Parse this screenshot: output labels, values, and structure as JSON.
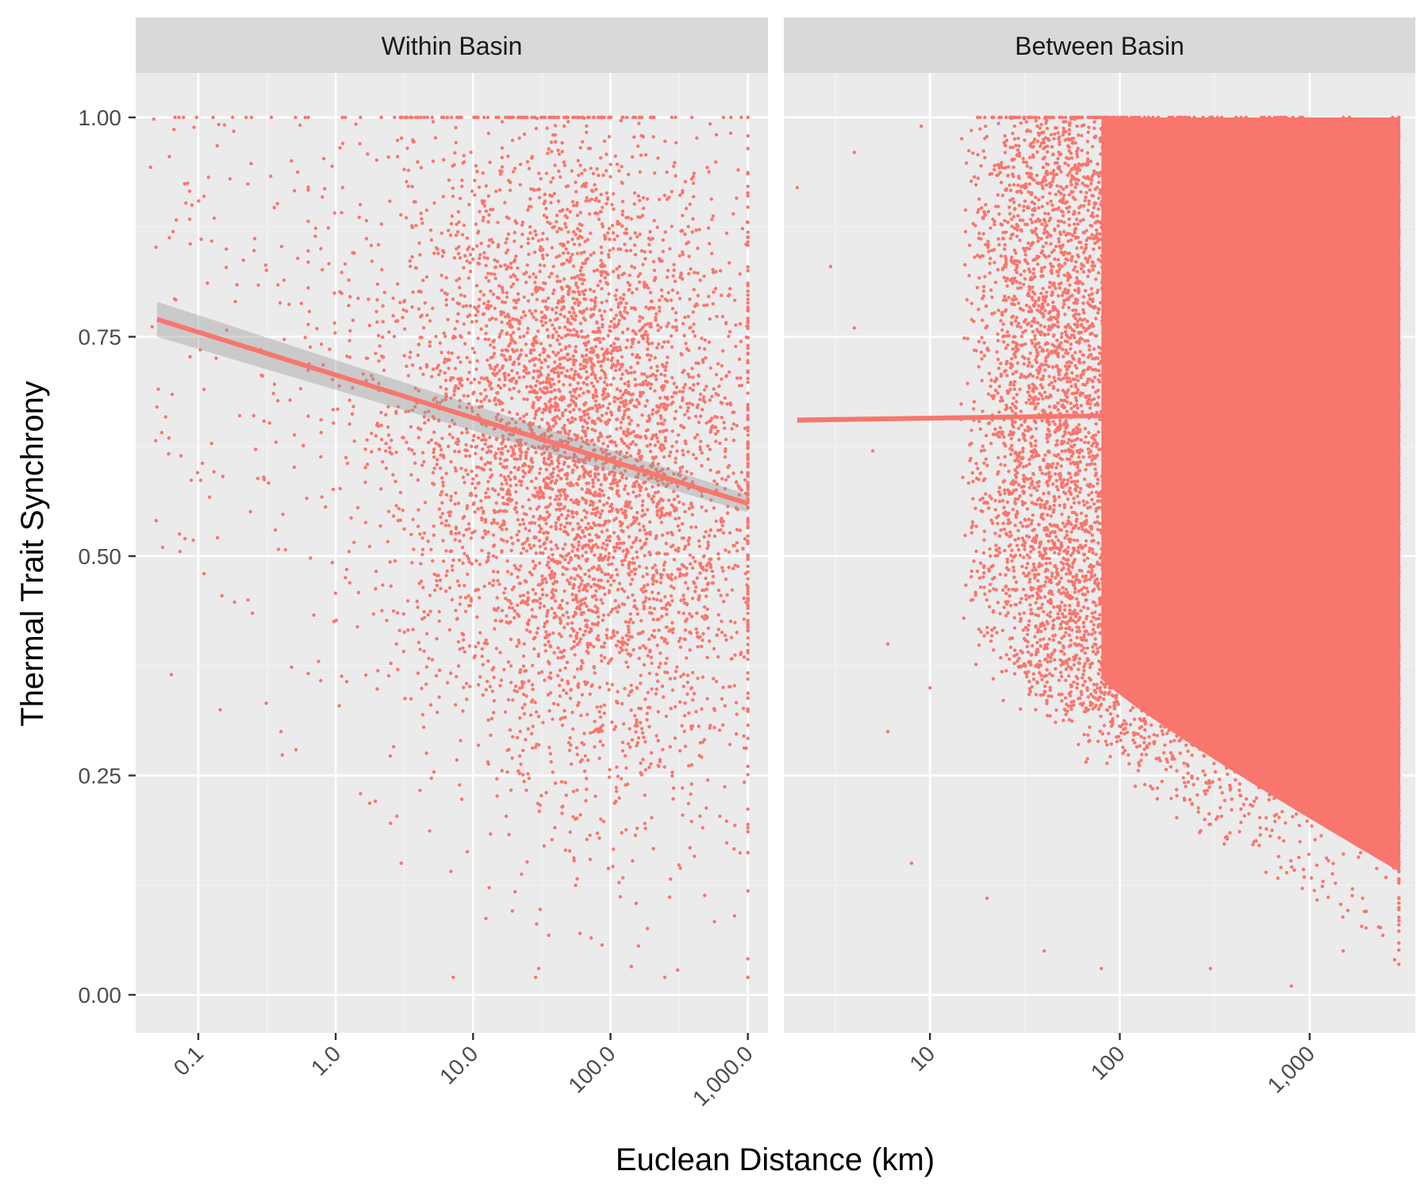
{
  "colors": {
    "panel_bg": "#EBEBEB",
    "strip_bg": "#D9D9D9",
    "grid_major": "#FFFFFF",
    "grid_minor": "#F2F2F2",
    "points": "#F8766D",
    "ribbon": "#999999",
    "tick": "#333333",
    "tick_text": "#4D4D4D"
  },
  "chart_data": {
    "type": "scatter",
    "x_scale": "log10",
    "xlabel": "Euclean Distance (km)",
    "ylabel": "Thermal Trait Synchrony",
    "ylim": [
      0,
      1
    ],
    "y_ticks": [
      0.0,
      0.25,
      0.5,
      0.75,
      1.0
    ],
    "y_tick_labels": [
      "0.00",
      "0.25",
      "0.50",
      "0.75",
      "1.00"
    ],
    "grid": true,
    "legend": "none",
    "panels": [
      {
        "title": "Within Basin",
        "xlim": [
          0.035,
          1400
        ],
        "x_ticks": [
          0.1,
          1,
          10,
          100,
          1000
        ],
        "x_tick_labels": [
          "0.1",
          "1.0",
          "10.0",
          "100.0",
          "1,000.0"
        ],
        "trend": {
          "x": [
            0.05,
            1000
          ],
          "y": [
            0.77,
            0.56
          ]
        },
        "ribbon": {
          "x": [
            0.05,
            1000
          ],
          "y_low": [
            0.75,
            0.55
          ],
          "y_high": [
            0.79,
            0.57
          ]
        },
        "sample_points": [
          [
            0.05,
            0.67
          ],
          [
            0.055,
            0.51
          ],
          [
            0.08,
            0.52
          ],
          [
            0.09,
            0.9
          ],
          [
            0.11,
            0.91
          ],
          [
            0.11,
            0.69
          ],
          [
            0.11,
            0.48
          ],
          [
            0.17,
            0.93
          ],
          [
            0.16,
            0.85
          ],
          [
            0.2,
            0.66
          ],
          [
            0.23,
            0.45
          ],
          [
            0.3,
            0.59
          ],
          [
            0.4,
            0.3
          ],
          [
            0.6,
            1.0
          ],
          [
            0.75,
            0.38
          ],
          [
            1.5,
            0.97
          ],
          [
            3,
            0.15
          ],
          [
            30,
            0.03
          ],
          [
            60,
            0.07
          ],
          [
            70,
            1.0
          ],
          [
            200,
            1.0
          ],
          [
            800,
            0.09
          ]
        ]
      },
      {
        "title": "Between Basin",
        "xlim": [
          1.7,
          3600
        ],
        "x_ticks": [
          10,
          100,
          1000
        ],
        "x_tick_labels": [
          "10",
          "100",
          "1,000"
        ],
        "trend": {
          "x": [
            2,
            3000
          ],
          "y": [
            0.655,
            0.665
          ]
        },
        "ribbon": {
          "x": [
            2,
            3000
          ],
          "y_low": [
            0.652,
            0.663
          ],
          "y_high": [
            0.658,
            0.667
          ]
        },
        "dense_region": {
          "x_from": 80,
          "x_to": 3000,
          "y_to": 1.0
        },
        "sample_points": [
          [
            2,
            0.92
          ],
          [
            3,
            0.83
          ],
          [
            4,
            0.96
          ],
          [
            4,
            0.76
          ],
          [
            5,
            0.62
          ],
          [
            6,
            0.3
          ],
          [
            6,
            0.4
          ],
          [
            8,
            0.15
          ],
          [
            9,
            0.99
          ],
          [
            10,
            0.35
          ],
          [
            20,
            0.11
          ],
          [
            40,
            0.05
          ],
          [
            80,
            0.03
          ],
          [
            300,
            0.03
          ],
          [
            800,
            0.01
          ],
          [
            1500,
            0.05
          ],
          [
            2800,
            0.04
          ]
        ]
      }
    ]
  }
}
